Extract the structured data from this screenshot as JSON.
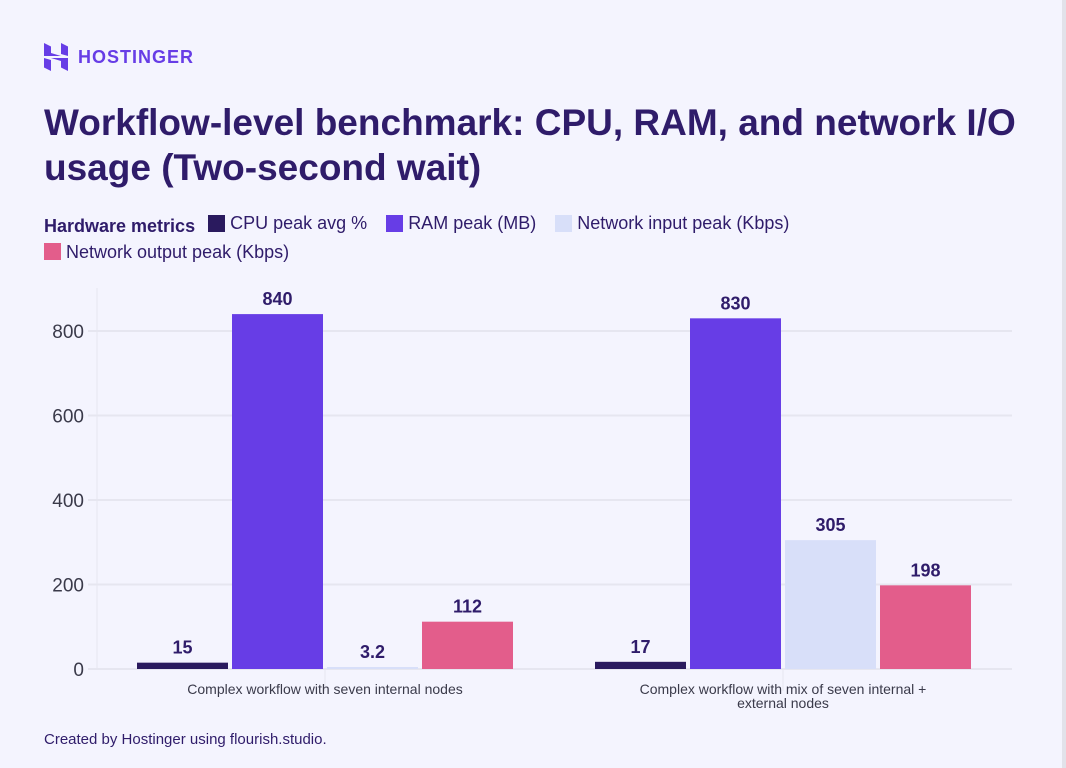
{
  "brand": {
    "name": "HOSTINGER",
    "color": "#673de6"
  },
  "title": "Workflow-level benchmark: CPU, RAM, and network I/O usage (Two-second wait)",
  "footer": "Created by Hostinger using flourish.studio.",
  "chart_data": {
    "type": "bar",
    "title": "Workflow-level benchmark: CPU, RAM, and network I/O usage (Two-second wait)",
    "legend_title": "Hardware metrics",
    "legend_placement": "top",
    "categories": [
      "Complex workflow with seven internal nodes",
      "Complex workflow with mix of seven internal + external nodes"
    ],
    "series": [
      {
        "name": "CPU peak avg %",
        "color": "#2a1a5e",
        "values": [
          15,
          17
        ],
        "labels": [
          "15",
          "17"
        ]
      },
      {
        "name": "RAM peak (MB)",
        "color": "#673de6",
        "values": [
          840,
          830
        ],
        "labels": [
          "840",
          "830"
        ]
      },
      {
        "name": "Network input peak (Kbps)",
        "color": "#d8dff9",
        "values": [
          3.2,
          305
        ],
        "labels": [
          "3.2",
          "305"
        ]
      },
      {
        "name": "Network output peak (Kbps)",
        "color": "#e35d8b",
        "values": [
          112,
          198
        ],
        "labels": [
          "112",
          "198"
        ]
      }
    ],
    "yticks": [
      0,
      200,
      400,
      600,
      800
    ],
    "tick_labels": [
      "0",
      "200",
      "400",
      "600",
      "800"
    ],
    "ylim": [
      0,
      880
    ],
    "grid": true,
    "xlabel": "",
    "ylabel": ""
  }
}
